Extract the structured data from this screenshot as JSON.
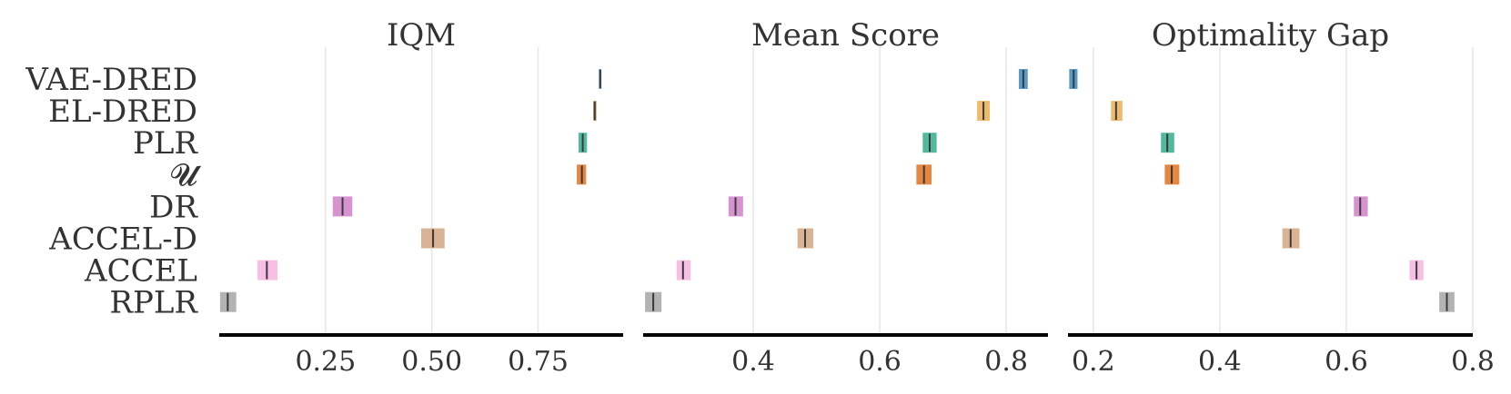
{
  "chart_data": [
    {
      "type": "interval",
      "title": "IQM",
      "xlim": [
        0.0,
        0.95
      ],
      "xticks": [
        0.25,
        0.5,
        0.75
      ],
      "xtick_labels": [
        "0.25",
        "0.50",
        "0.75"
      ],
      "grid": true,
      "categories": [
        "VAE-DRED",
        "EL-DRED",
        "PLR",
        "𝓤",
        "DR",
        "ACCEL-D",
        "ACCEL",
        "RPLR"
      ],
      "colors": [
        "#1f77b4",
        "#8c6d1f",
        "#17a27d",
        "#d95f02",
        "#c86fc0",
        "#cd9a70",
        "#f5a9dc",
        "#9a9a9a"
      ],
      "point": [
        0.896,
        0.883,
        0.855,
        0.853,
        0.29,
        0.503,
        0.112,
        0.02
      ],
      "ci_low": [
        0.893,
        0.88,
        0.845,
        0.841,
        0.267,
        0.475,
        0.09,
        0.002
      ],
      "ci_high": [
        0.899,
        0.887,
        0.865,
        0.863,
        0.313,
        0.53,
        0.137,
        0.04
      ]
    },
    {
      "type": "interval",
      "title": "Mean Score",
      "xlim": [
        0.226,
        0.866
      ],
      "xticks": [
        0.4,
        0.6,
        0.8
      ],
      "xtick_labels": [
        "0.4",
        "0.6",
        "0.8"
      ],
      "grid": true,
      "categories": [
        "VAE-DRED",
        "EL-DRED",
        "PLR",
        "𝓤",
        "DR",
        "ACCEL-D",
        "ACCEL",
        "RPLR"
      ],
      "colors": [
        "#1f77b4",
        "#e8a33a",
        "#17a27d",
        "#d95f02",
        "#c86fc0",
        "#cd9a70",
        "#f5a9dc",
        "#9a9a9a"
      ],
      "point": [
        0.827,
        0.764,
        0.679,
        0.67,
        0.372,
        0.482,
        0.289,
        0.242
      ],
      "ci_low": [
        0.82,
        0.754,
        0.668,
        0.658,
        0.361,
        0.47,
        0.279,
        0.229
      ],
      "ci_high": [
        0.834,
        0.774,
        0.69,
        0.682,
        0.384,
        0.495,
        0.301,
        0.255
      ]
    },
    {
      "type": "interval",
      "title": "Optimality Gap",
      "xlim": [
        0.16,
        0.8
      ],
      "xticks": [
        0.2,
        0.4,
        0.6,
        0.8
      ],
      "xtick_labels": [
        "0.2",
        "0.4",
        "0.6",
        "0.8"
      ],
      "grid": true,
      "categories": [
        "VAE-DRED",
        "EL-DRED",
        "PLR",
        "𝓤",
        "DR",
        "ACCEL-D",
        "ACCEL",
        "RPLR"
      ],
      "colors": [
        "#1f77b4",
        "#e8a33a",
        "#17a27d",
        "#d95f02",
        "#c86fc0",
        "#cd9a70",
        "#f5a9dc",
        "#9a9a9a"
      ],
      "point": [
        0.169,
        0.236,
        0.317,
        0.324,
        0.622,
        0.512,
        0.711,
        0.759
      ],
      "ci_low": [
        0.162,
        0.228,
        0.307,
        0.313,
        0.612,
        0.499,
        0.7,
        0.747
      ],
      "ci_high": [
        0.175,
        0.246,
        0.328,
        0.336,
        0.634,
        0.526,
        0.722,
        0.771
      ]
    }
  ]
}
